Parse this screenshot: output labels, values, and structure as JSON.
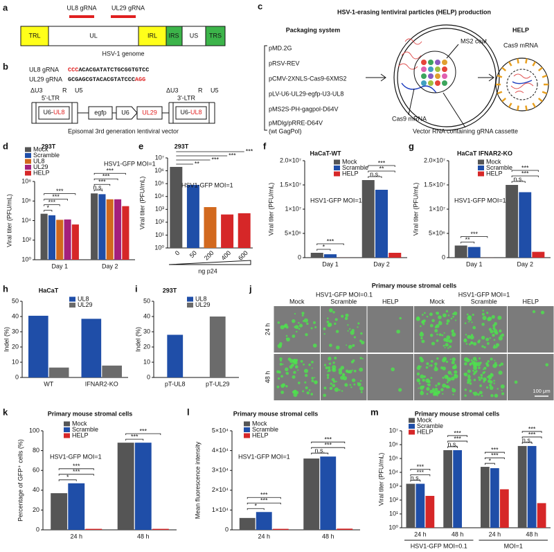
{
  "panel_labels": [
    "a",
    "b",
    "c",
    "d",
    "e",
    "f",
    "g",
    "h",
    "i",
    "j",
    "k",
    "l",
    "m"
  ],
  "diagram_a": {
    "grna_labels": [
      "UL8 gRNA",
      "UL29 gRNA"
    ],
    "segments": [
      "TRL",
      "UL",
      "IRL",
      "IRS",
      "US",
      "TRS"
    ],
    "caption": "HSV-1 genome"
  },
  "diagram_b": {
    "grnas": [
      {
        "name": "UL8 gRNA",
        "sequence": [
          "CCC",
          "ACACGATATCTGCGGTGTCC"
        ]
      },
      {
        "name": "UL29 gRNA",
        "sequence": [
          "GCGAGCGTACACGTATCCC",
          "AGG"
        ]
      }
    ],
    "ltr5": {
      "labels": [
        "ΔU3",
        "R",
        "U5"
      ],
      "name": "5'-LTR",
      "insert": [
        "U6-",
        "UL8"
      ]
    },
    "elements": [
      "egfp",
      "U6"
    ],
    "ul29": "UL29",
    "ltr3": {
      "labels": [
        "ΔU3",
        "R",
        "U5"
      ],
      "name": "3'-LTR",
      "insert": [
        "U6-",
        "UL8"
      ]
    },
    "caption": "Episomal 3rd generation lentiviral vector"
  },
  "diagram_c": {
    "title": "HSV-1-erasing lentiviral particles (HELP) production",
    "packaging_title": "Packaging system",
    "plasmids": [
      "pMD.2G",
      "pRSV-REV",
      "pCMV-2XNLS-Cas9-6XMS2",
      "pLV-U6-UL29-egfp-U3-UL8",
      "pMS2S-PH-gagpol-D64V",
      "pMDlg/pRRE-D64V",
      "(wt GagPol)"
    ],
    "help_title": "HELP",
    "labels": [
      "MS2 coat",
      "Cas9 mRNA",
      "Cas9 mRNA",
      "Vector RNA containing gRNA cassette"
    ]
  },
  "panel_j": {
    "title": "Primary mouse stromal cells",
    "conditions": [
      "HSV1-GFP MOI=0.1",
      "HSV1-GFP MOI=1"
    ],
    "columns": [
      "Mock",
      "Scramble",
      "HELP",
      "Mock",
      "Scramble",
      "HELP"
    ],
    "rows": [
      "24 h",
      "48 h"
    ],
    "scale_bar": "100 μm"
  },
  "chart_data": [
    {
      "type": "bar",
      "title": "293T",
      "ylabel": "Viral titer (PFU/mL)",
      "log_scale": true,
      "note": "HSV1-GFP MOI=1",
      "categories": [
        "Day 1",
        "Day 2"
      ],
      "series": [
        {
          "name": "Mock",
          "color": "#555555",
          "values": [
            50000,
            6000000
          ]
        },
        {
          "name": "Scramble",
          "color": "#1f4ea8",
          "values": [
            35000,
            5000000
          ]
        },
        {
          "name": "UL8",
          "color": "#d2691e",
          "values": [
            12000,
            1500000
          ]
        },
        {
          "name": "UL29",
          "color": "#a3207c",
          "values": [
            13000,
            1500000
          ]
        },
        {
          "name": "HELP",
          "color": "#d62728",
          "values": [
            4000,
            300000
          ]
        }
      ],
      "ylim": [
        1,
        100000000
      ],
      "yticks": [
        {
          "value": 1,
          "label": "10⁰"
        },
        {
          "value": 100,
          "label": "10²"
        },
        {
          "value": 10000,
          "label": "10⁴"
        },
        {
          "value": 1000000,
          "label": "10⁶"
        },
        {
          "value": 100000000,
          "label": "10⁸"
        }
      ],
      "annotations": [
        [
          "*",
          "***",
          "***",
          "***"
        ],
        [
          "n.s.",
          "***",
          "***",
          "***"
        ]
      ]
    },
    {
      "type": "bar",
      "title": "293T",
      "ylabel": "Viral titer (PFU/mL)",
      "log_scale": true,
      "note": "HSV1-GFP MOI=1",
      "xlabel": "ng p24",
      "categories": [
        "0",
        "50",
        "200",
        "400",
        "600"
      ],
      "values": [
        2000000,
        80000,
        1500,
        400,
        500
      ],
      "colors": [
        "#555555",
        "#1f4ea8",
        "#d2691e",
        "#d62728",
        "#d62728"
      ],
      "ylim": [
        1,
        10000000
      ],
      "yticks": [
        {
          "value": 1,
          "label": "10⁰"
        },
        {
          "value": 10,
          "label": "10¹"
        },
        {
          "value": 100,
          "label": "10²"
        },
        {
          "value": 1000,
          "label": "10³"
        },
        {
          "value": 10000,
          "label": "10⁴"
        },
        {
          "value": 100000,
          "label": "10⁵"
        },
        {
          "value": 1000000,
          "label": "10⁶"
        },
        {
          "value": 10000000,
          "label": "10⁷"
        }
      ],
      "annotations": [
        "**",
        "***",
        "***",
        "***"
      ]
    },
    {
      "type": "bar",
      "title": "HaCaT-WT",
      "ylabel": "Viral titer (PFU/mL)",
      "note": "HSV1-GFP MOI=1",
      "categories": [
        "Day 1",
        "Day 2"
      ],
      "series": [
        {
          "name": "Mock",
          "color": "#555555",
          "values": [
            1000000,
            16000000
          ]
        },
        {
          "name": "Scramble",
          "color": "#1f4ea8",
          "values": [
            700000,
            14000000
          ]
        },
        {
          "name": "HELP",
          "color": "#d62728",
          "values": [
            10000,
            1000000
          ]
        }
      ],
      "ylim": [
        0,
        20000000
      ],
      "yticks": [
        0,
        {
          "value": 5000000,
          "label": "5×10⁶"
        },
        {
          "value": 10000000,
          "label": "1×10⁷"
        },
        {
          "value": 15000000,
          "label": "1.5×10⁷"
        },
        {
          "value": 20000000,
          "label": "2.0×10⁷"
        }
      ],
      "annotations": [
        [
          "*",
          "***"
        ],
        [
          "n.s.",
          "**",
          "***"
        ]
      ]
    },
    {
      "type": "bar",
      "title": "HaCaT IFNAR2-KO",
      "ylabel": "Viral titer (PFU/mL)",
      "note": "HSV1-GFP MOI=1",
      "categories": [
        "Day 1",
        "Day 2"
      ],
      "series": [
        {
          "name": "Mock",
          "color": "#555555",
          "values": [
            2500000,
            15000000
          ]
        },
        {
          "name": "Scramble",
          "color": "#1f4ea8",
          "values": [
            2200000,
            13500000
          ]
        },
        {
          "name": "HELP",
          "color": "#d62728",
          "values": [
            10000,
            1200000
          ]
        }
      ],
      "ylim": [
        0,
        20000000
      ],
      "yticks": [
        0,
        {
          "value": 5000000,
          "label": "5×10⁶"
        },
        {
          "value": 10000000,
          "label": "1×10⁷"
        },
        {
          "value": 15000000,
          "label": "1.5×10⁷"
        },
        {
          "value": 20000000,
          "label": "2.0×10⁷"
        }
      ],
      "annotations": [
        [
          "**",
          "***"
        ],
        [
          "n.s.",
          "***",
          "***"
        ]
      ]
    },
    {
      "type": "bar",
      "title": "HaCaT",
      "ylabel": "Indel (%)",
      "categories": [
        "WT",
        "IFNAR2-KO"
      ],
      "series": [
        {
          "name": "UL8",
          "color": "#1f4ea8",
          "values": [
            40.5,
            38.5
          ]
        },
        {
          "name": "UL29",
          "color": "#6b6b6b",
          "values": [
            6.5,
            7.8
          ]
        }
      ],
      "ylim": [
        0,
        50
      ],
      "yticks": [
        0,
        10,
        20,
        30,
        40,
        50
      ]
    },
    {
      "type": "bar",
      "title": "293T",
      "ylabel": "Indel (%)",
      "categories": [
        "pT-UL8",
        "pT-UL29"
      ],
      "series": [
        {
          "name": "UL8",
          "color": "#1f4ea8",
          "values": [
            28,
            null
          ]
        },
        {
          "name": "UL29",
          "color": "#6b6b6b",
          "values": [
            null,
            40
          ]
        }
      ],
      "ylim": [
        0,
        50
      ],
      "yticks": [
        0,
        10,
        20,
        30,
        40,
        50
      ]
    },
    {
      "type": "bar",
      "title": "Primary mouse stromal cells",
      "ylabel": "Percentage of GFP⁺ cells (%)",
      "note": "HSV1-GFP MOI=1",
      "categories": [
        "24 h",
        "48 h"
      ],
      "series": [
        {
          "name": "Mock",
          "color": "#555555",
          "values": [
            37,
            88
          ]
        },
        {
          "name": "Scramble",
          "color": "#1f4ea8",
          "values": [
            47,
            88
          ]
        },
        {
          "name": "HELP",
          "color": "#d62728",
          "values": [
            1,
            1
          ]
        }
      ],
      "ylim": [
        0,
        100
      ],
      "yticks": [
        0,
        20,
        40,
        60,
        80,
        100
      ],
      "annotations": [
        [
          "*",
          "***",
          "***"
        ],
        [
          "***",
          "***"
        ]
      ]
    },
    {
      "type": "bar",
      "title": "Primary mouse stromal cells",
      "ylabel": "Mean fluorescence intensity",
      "note": "HSV1-GFP MOI=1",
      "categories": [
        "24 h",
        "48 h"
      ],
      "series": [
        {
          "name": "Mock",
          "color": "#555555",
          "values": [
            6000,
            36000
          ]
        },
        {
          "name": "Scramble",
          "color": "#1f4ea8",
          "values": [
            9000,
            37000
          ]
        },
        {
          "name": "HELP",
          "color": "#d62728",
          "values": [
            500,
            600
          ]
        }
      ],
      "ylim": [
        0,
        50000
      ],
      "yticks": [
        0,
        {
          "value": 10000,
          "label": "1×10⁴"
        },
        {
          "value": 20000,
          "label": "2×10⁴"
        },
        {
          "value": 30000,
          "label": "3×10⁴"
        },
        {
          "value": 40000,
          "label": "4×10⁴"
        },
        {
          "value": 50000,
          "label": "5×10⁴"
        }
      ],
      "annotations": [
        [
          "*",
          "***",
          "***"
        ],
        [
          "n.s.",
          "***",
          "***"
        ]
      ]
    },
    {
      "type": "bar",
      "title": "Primary mouse stromal cells",
      "ylabel": "Viral titer (PFU/mL)",
      "log_scale": true,
      "categories": [
        "24 h",
        "48 h",
        "24 h",
        "48 h"
      ],
      "group_labels": [
        "HSV1-GFP MOI=0.1",
        "MOI=1"
      ],
      "series": [
        {
          "name": "Mock",
          "color": "#555555",
          "values": [
            1500,
            400000,
            25000,
            800000
          ]
        },
        {
          "name": "Scramble",
          "color": "#1f4ea8",
          "values": [
            1500,
            400000,
            20000,
            800000
          ]
        },
        {
          "name": "HELP",
          "color": "#d62728",
          "values": [
            200,
            1,
            600,
            60
          ]
        }
      ],
      "ylim": [
        1,
        10000000
      ],
      "yticks": [
        {
          "value": 1,
          "label": "10⁰"
        },
        {
          "value": 10,
          "label": "10¹"
        },
        {
          "value": 100,
          "label": "10²"
        },
        {
          "value": 1000,
          "label": "10³"
        },
        {
          "value": 10000,
          "label": "10⁴"
        },
        {
          "value": 100000,
          "label": "10⁵"
        },
        {
          "value": 1000000,
          "label": "10⁶"
        },
        {
          "value": 10000000,
          "label": "10⁷"
        }
      ],
      "annotations": [
        [
          "n.s.",
          "***",
          "***"
        ],
        [
          "n.s.",
          "***",
          "***"
        ],
        [
          "*",
          "***",
          "***"
        ],
        [
          "n.s.",
          "***",
          "***"
        ]
      ]
    }
  ]
}
